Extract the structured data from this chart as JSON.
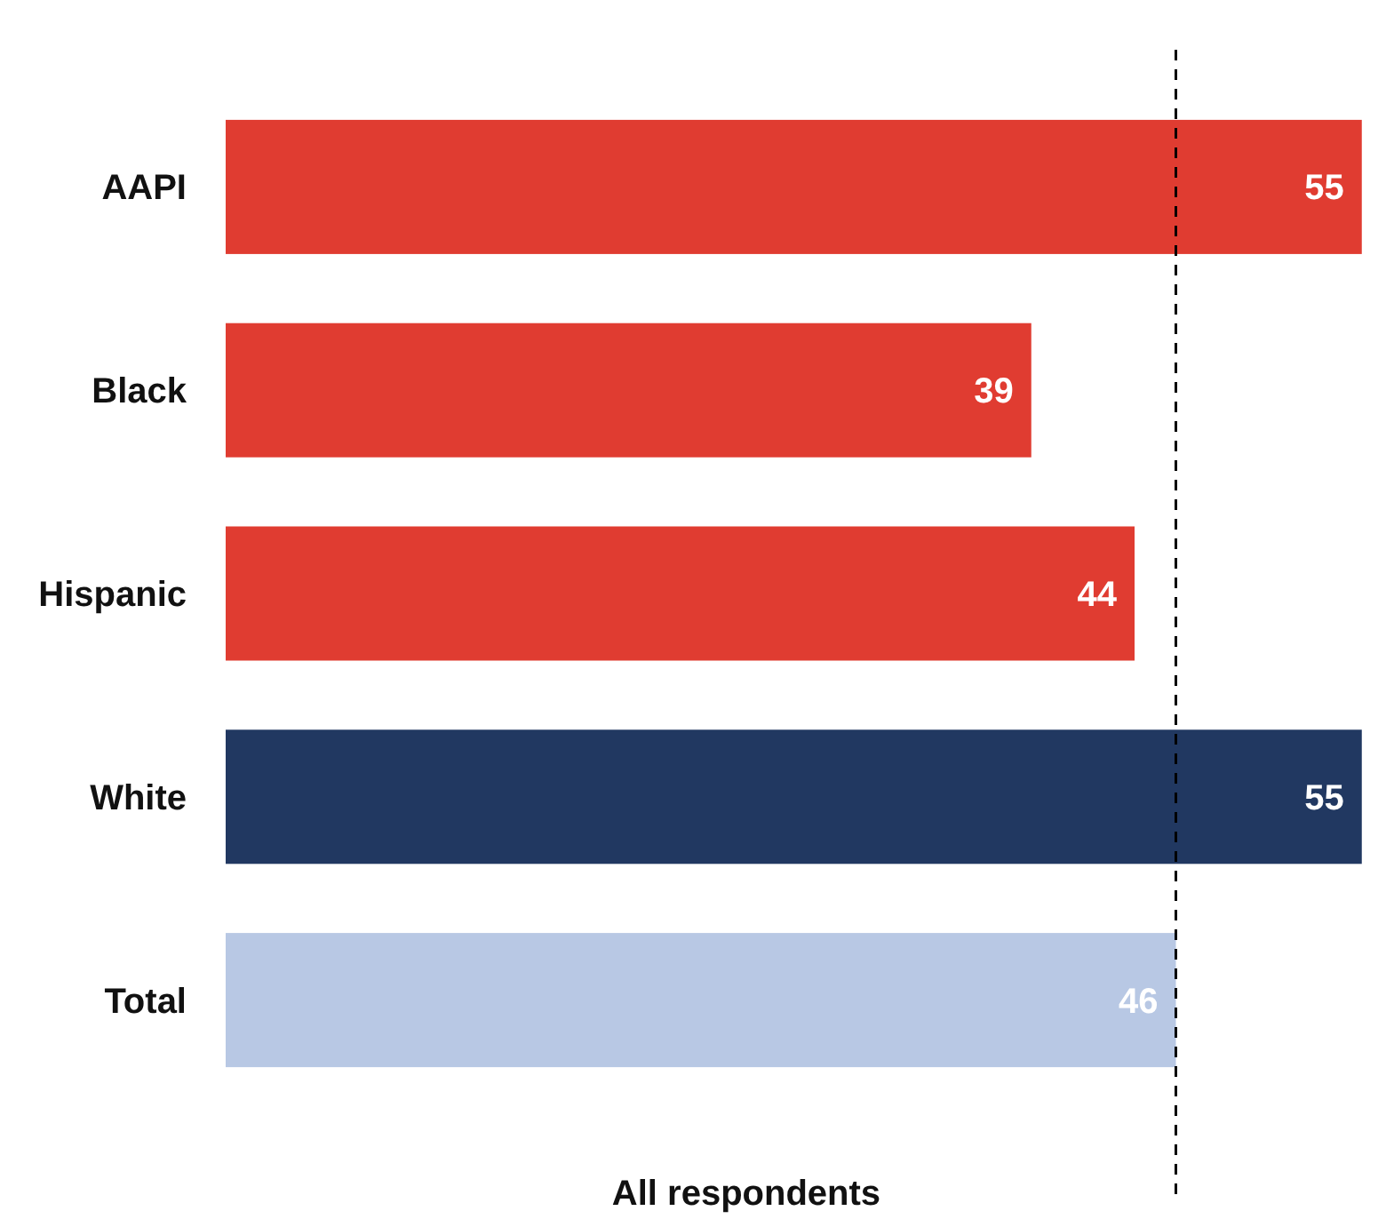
{
  "chart_data": {
    "type": "bar",
    "orientation": "horizontal",
    "xlabel": "All respondents",
    "categories": [
      "AAPI",
      "Black",
      "Hispanic",
      "White",
      "Total"
    ],
    "values": [
      55,
      39,
      44,
      55,
      46
    ],
    "colors": [
      "#e03c31",
      "#e03c31",
      "#e03c31",
      "#213861",
      "#b8c8e4"
    ],
    "xlim": [
      0,
      56
    ],
    "data_labels": true,
    "ref_lines": [
      {
        "axis": "x",
        "value": 46,
        "color": "#000000",
        "line_style": "dashed"
      }
    ]
  }
}
